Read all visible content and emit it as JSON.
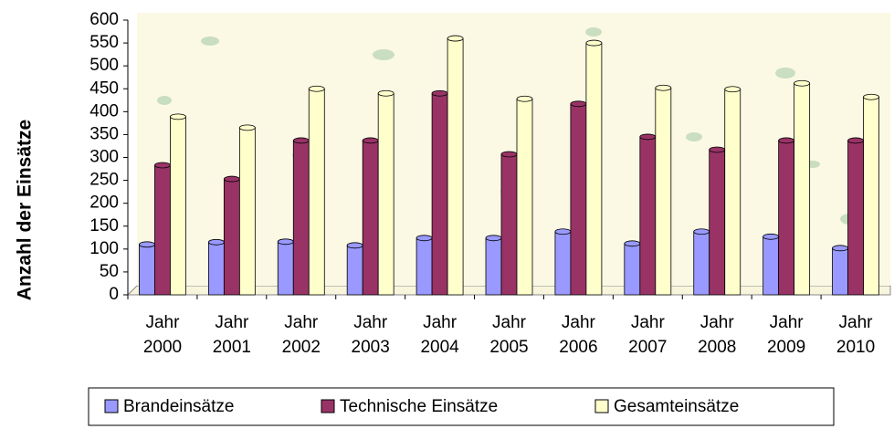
{
  "chart_data": {
    "type": "bar",
    "y_label": "Anzahl der Einsätze",
    "categories": [
      "Jahr 2000",
      "Jahr 2001",
      "Jahr 2002",
      "Jahr 2003",
      "Jahr 2004",
      "Jahr 2005",
      "Jahr 2006",
      "Jahr 2007",
      "Jahr 2008",
      "Jahr 2009",
      "Jahr 2010"
    ],
    "series": [
      {
        "name": "Brandeinsätze",
        "color": "#9999ff",
        "values": [
          110,
          115,
          116,
          108,
          124,
          124,
          138,
          112,
          138,
          127,
          102
        ]
      },
      {
        "name": "Technische Einsätze",
        "color": "#993366",
        "values": [
          283,
          253,
          337,
          337,
          440,
          307,
          417,
          345,
          317,
          337,
          337
        ]
      },
      {
        "name": "Gesamteinsätze",
        "color": "#ffffcc",
        "values": [
          389,
          365,
          450,
          440,
          560,
          428,
          550,
          452,
          449,
          462,
          432
        ]
      }
    ],
    "ylim": [
      0,
      600
    ],
    "yticks": [
      0,
      50,
      100,
      150,
      200,
      250,
      300,
      350,
      400,
      450,
      500,
      550,
      600
    ],
    "legend": "bottom"
  }
}
